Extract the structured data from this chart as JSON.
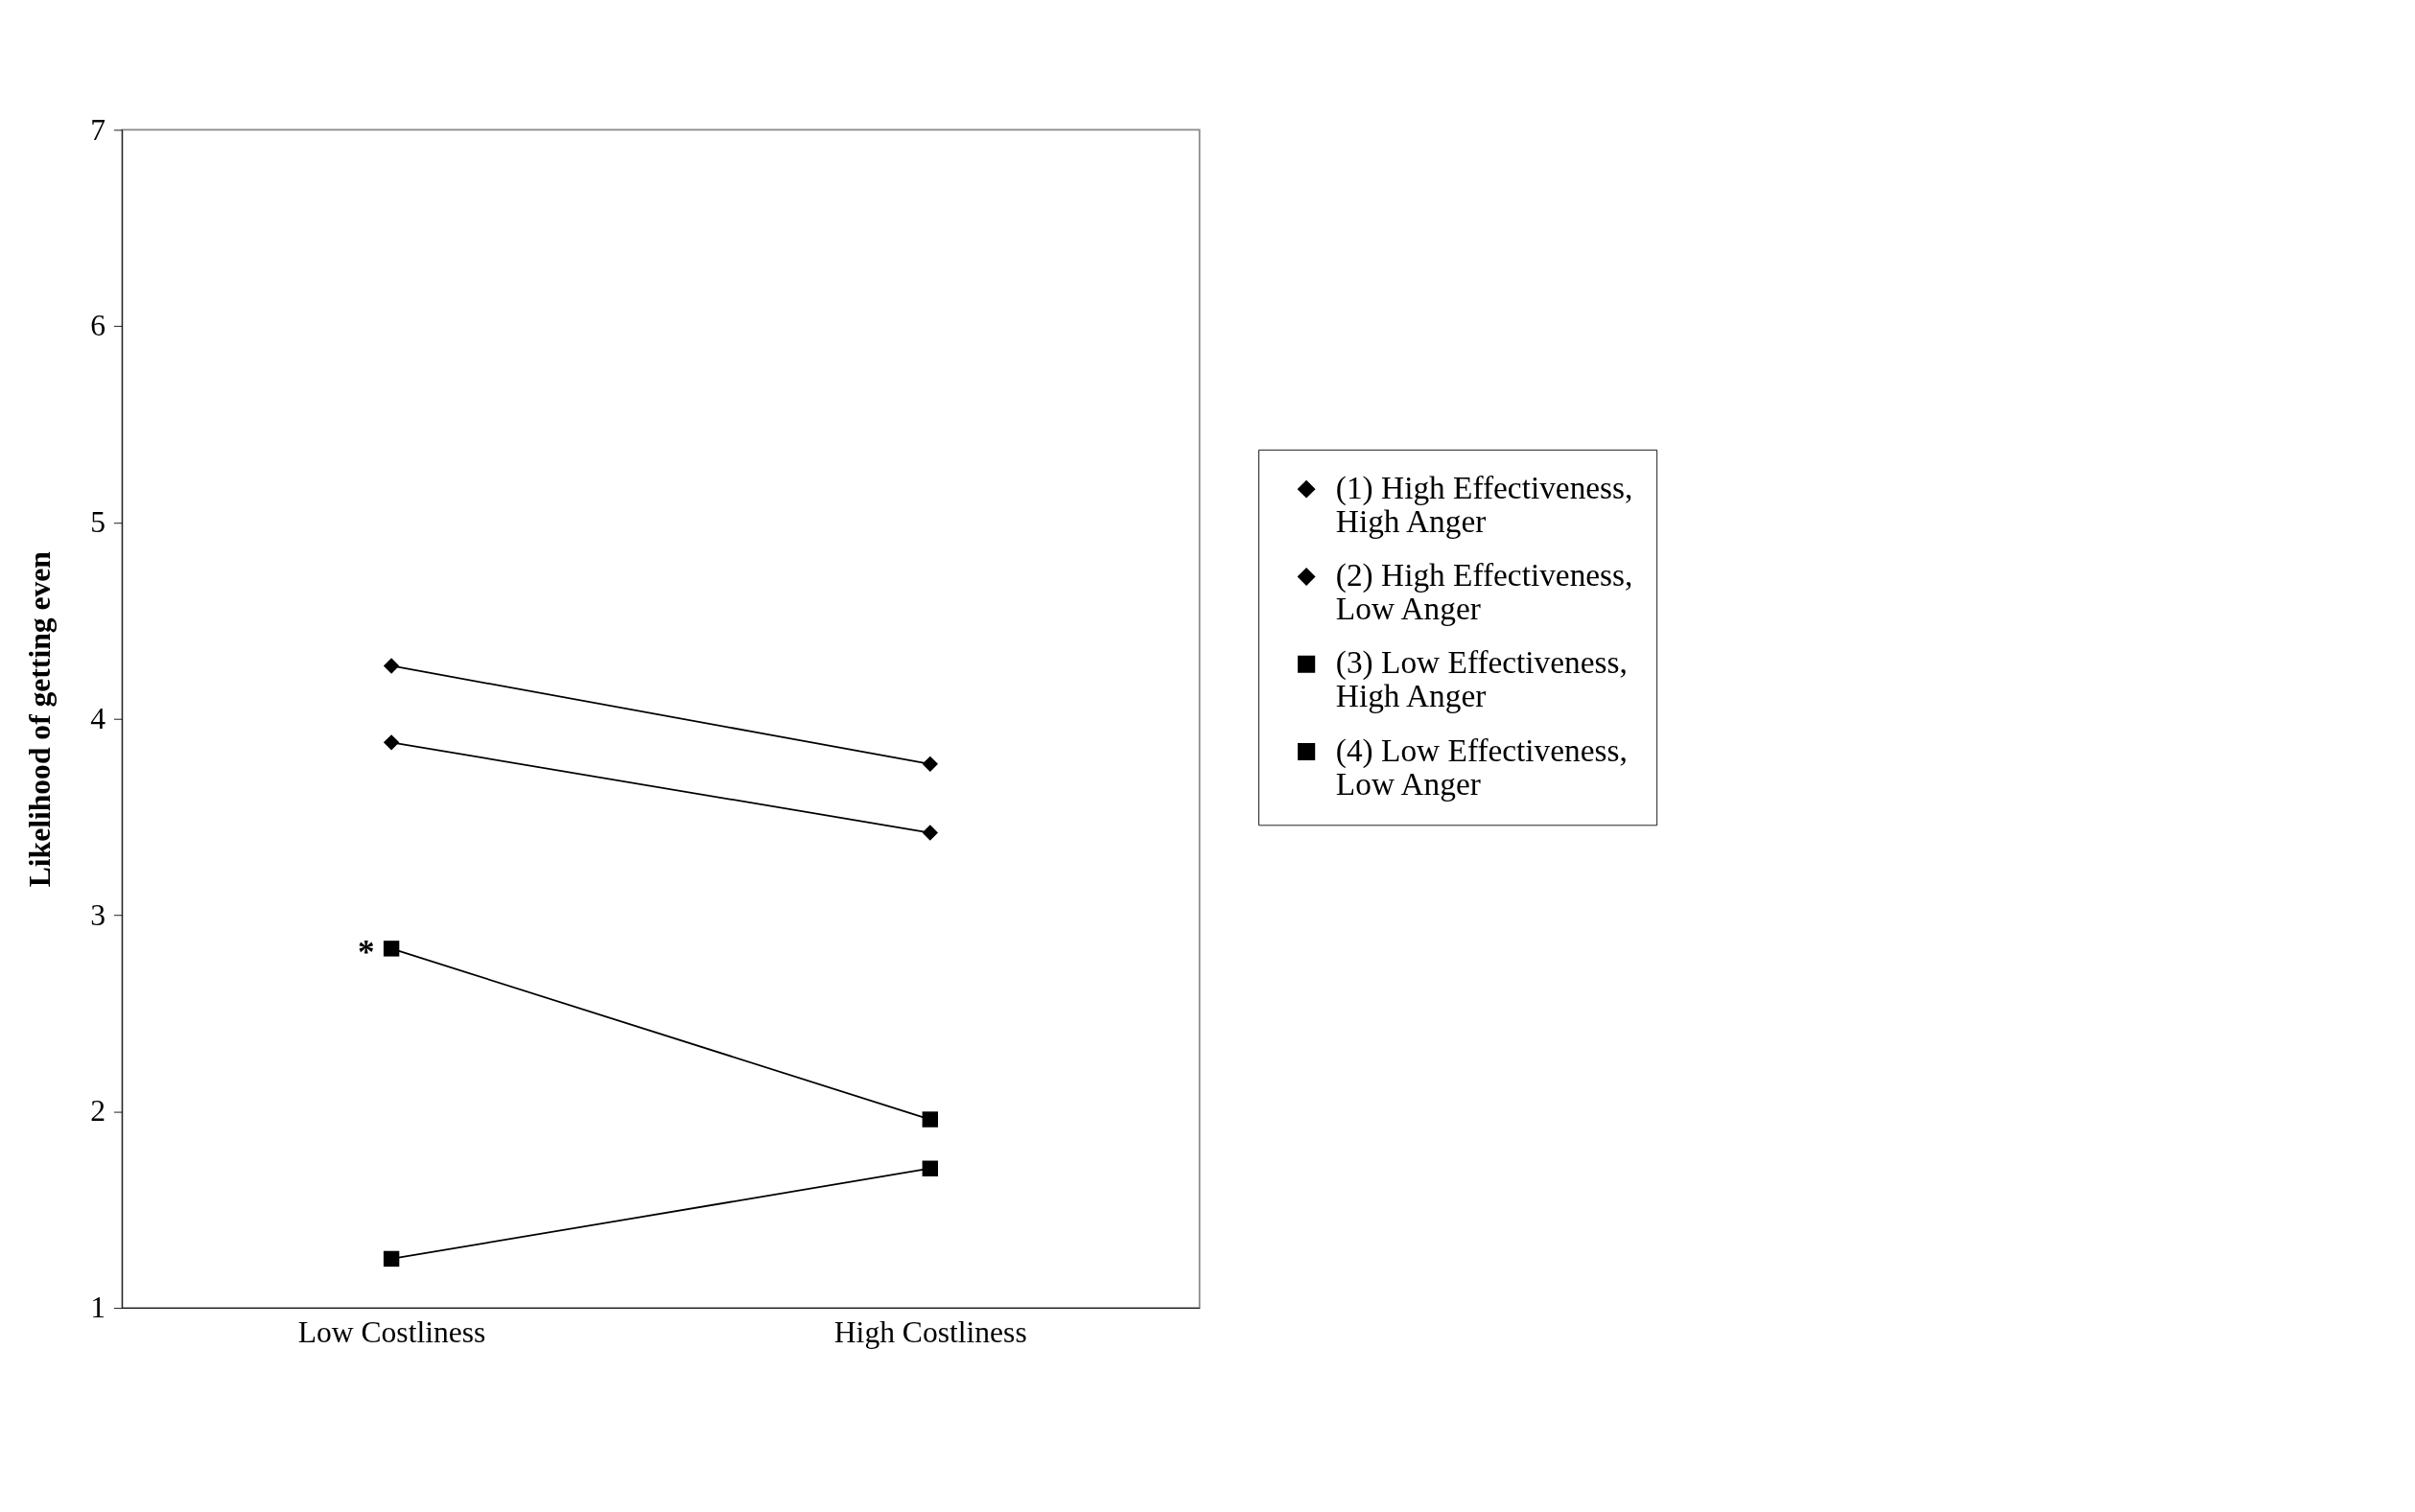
{
  "chart_data": {
    "type": "line",
    "ylabel": "Likelihood of getting even",
    "categories": [
      "Low Costliness",
      "High Costliness"
    ],
    "series": [
      {
        "name": "(1) High Effectiveness, High Anger",
        "color": "#000000",
        "marker": "diamond",
        "values": [
          4.27,
          3.77
        ]
      },
      {
        "name": "(2) High Effectiveness, Low Anger",
        "color": "#000000",
        "marker": "diamond",
        "values": [
          3.88,
          3.42
        ]
      },
      {
        "name": "(3) Low Effectiveness, High Anger",
        "color": "#000000",
        "marker": "square",
        "values": [
          2.83,
          1.96
        ]
      },
      {
        "name": "(4) Low Effectiveness, Low Anger",
        "color": "#000000",
        "marker": "square",
        "values": [
          1.25,
          1.71
        ]
      }
    ],
    "ylim": [
      1,
      7
    ],
    "yticks": [
      1,
      2,
      3,
      4,
      5,
      6,
      7
    ],
    "grid": false,
    "legend": "right",
    "annotations": [
      {
        "text": "*",
        "x": "Low Costliness",
        "y": 2.83
      }
    ]
  }
}
